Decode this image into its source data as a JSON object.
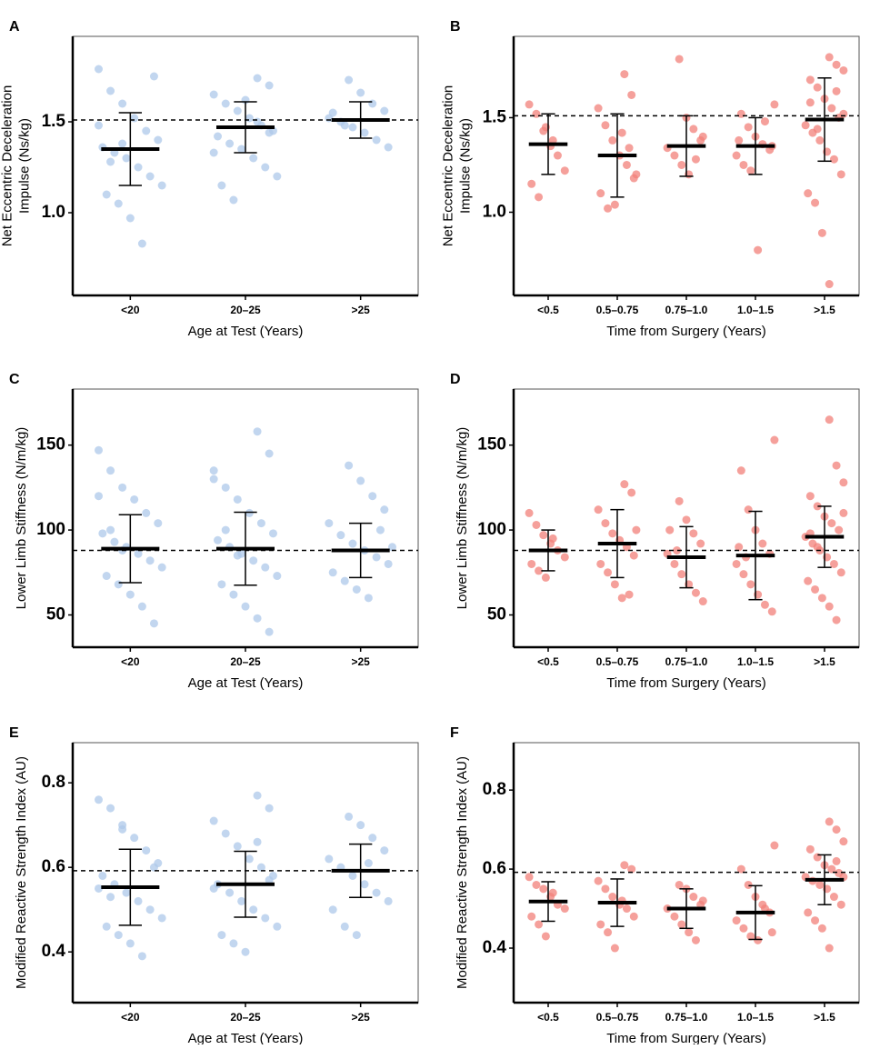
{
  "chart_data": [
    {
      "type": "strip",
      "panel": "A",
      "ylabel": [
        "Net Eccentric Deceleration",
        "Impulse (Ns/kg)"
      ],
      "xlabel": "Age at Test (Years)",
      "color": "#aec8ea",
      "categories": [
        "<20",
        "20–25",
        ">25"
      ],
      "points": [
        [
          1.79,
          1.67,
          1.6,
          1.52,
          1.45,
          1.4,
          1.36,
          1.33,
          1.3,
          1.25,
          1.2,
          1.15,
          1.1,
          1.05,
          0.97,
          0.83,
          1.75,
          1.48,
          1.28,
          1.38
        ],
        [
          1.74,
          1.7,
          1.65,
          1.6,
          1.56,
          1.52,
          1.48,
          1.45,
          1.42,
          1.38,
          1.35,
          1.3,
          1.25,
          1.2,
          1.15,
          1.07,
          1.62,
          1.5,
          1.44,
          1.33
        ],
        [
          1.73,
          1.66,
          1.6,
          1.56,
          1.52,
          1.5,
          1.47,
          1.44,
          1.4,
          1.36,
          1.55,
          1.48
        ]
      ],
      "means": [
        1.35,
        1.47,
        1.51
      ],
      "errors": [
        0.2,
        0.14,
        0.1
      ],
      "hline": 1.51,
      "ylim": [
        0.545,
        1.97
      ],
      "yticks": [
        {
          "value": 1,
          "label": "1.0"
        },
        1.5
      ]
    },
    {
      "type": "strip",
      "panel": "B",
      "ylabel": [
        "Net Eccentric Deceleration",
        "Impulse (Ns/kg)"
      ],
      "xlabel": "Time from Surgery (Years)",
      "color": "#f28079",
      "categories": [
        "<0.5",
        "0.5–0.75",
        "0.75–1.0",
        "1.0–1.5",
        ">1.5"
      ],
      "points": [
        [
          1.57,
          1.52,
          1.43,
          1.35,
          1.3,
          1.22,
          1.15,
          1.08,
          1.45,
          1.38
        ],
        [
          1.73,
          1.62,
          1.55,
          1.46,
          1.38,
          1.3,
          1.25,
          1.18,
          1.1,
          1.02,
          1.04,
          1.42,
          1.34,
          1.2
        ],
        [
          1.81,
          1.5,
          1.44,
          1.38,
          1.34,
          1.3,
          1.25,
          1.2,
          1.28,
          1.4
        ],
        [
          1.57,
          1.52,
          1.45,
          1.4,
          1.36,
          1.33,
          1.3,
          1.25,
          1.22,
          0.8,
          1.48,
          1.35,
          1.38
        ],
        [
          1.82,
          1.78,
          1.75,
          1.7,
          1.66,
          1.6,
          1.55,
          1.5,
          1.46,
          1.42,
          1.38,
          1.32,
          1.28,
          1.2,
          1.1,
          1.05,
          0.89,
          0.62,
          1.64,
          1.52,
          1.58,
          1.44
        ]
      ],
      "means": [
        1.36,
        1.3,
        1.35,
        1.35,
        1.49
      ],
      "errors": [
        0.16,
        0.22,
        0.16,
        0.15,
        0.22
      ],
      "hline": 1.51,
      "ylim": [
        0.56,
        1.93
      ],
      "yticks": [
        {
          "value": 1,
          "label": "1.0"
        },
        1.5
      ]
    },
    {
      "type": "strip",
      "panel": "C",
      "ylabel": [
        "Lower Limb Stiffness (N/m/kg)"
      ],
      "xlabel": "Age at Test (Years)",
      "color": "#aec8ea",
      "categories": [
        "<20",
        "20–25",
        ">25"
      ],
      "points": [
        [
          147,
          135,
          125,
          118,
          110,
          104,
          98,
          93,
          90,
          86,
          82,
          78,
          73,
          68,
          62,
          55,
          45,
          120,
          100,
          88
        ],
        [
          158,
          145,
          135,
          125,
          118,
          110,
          104,
          98,
          94,
          90,
          86,
          82,
          78,
          73,
          68,
          62,
          55,
          48,
          40,
          130,
          100,
          85
        ],
        [
          138,
          129,
          120,
          112,
          104,
          97,
          92,
          88,
          84,
          80,
          75,
          70,
          65,
          60,
          100,
          90
        ]
      ],
      "means": [
        89,
        89,
        88
      ],
      "errors": [
        20,
        21.5,
        16
      ],
      "hline": 88,
      "ylim": [
        31,
        183
      ],
      "yticks": [
        50,
        100,
        150
      ]
    },
    {
      "type": "strip",
      "panel": "D",
      "ylabel": [
        "Lower Limb Stiffness (N/m/kg)"
      ],
      "xlabel": "Time from Surgery (Years)",
      "color": "#f28079",
      "categories": [
        "<0.5",
        "0.5–0.75",
        "0.75–1.0",
        "1.0–1.5",
        ">1.5"
      ],
      "points": [
        [
          110,
          103,
          97,
          92,
          88,
          84,
          80,
          76,
          72,
          95
        ],
        [
          127,
          122,
          112,
          104,
          98,
          94,
          90,
          85,
          80,
          75,
          68,
          60,
          62,
          100
        ],
        [
          117,
          106,
          98,
          92,
          86,
          80,
          74,
          68,
          63,
          58,
          100,
          88
        ],
        [
          153,
          135,
          112,
          100,
          92,
          86,
          80,
          74,
          68,
          62,
          56,
          52,
          90,
          84
        ],
        [
          165,
          138,
          128,
          120,
          114,
          108,
          104,
          100,
          96,
          92,
          88,
          84,
          80,
          75,
          70,
          65,
          60,
          55,
          47,
          110,
          98,
          90
        ]
      ],
      "means": [
        88,
        92,
        84,
        85,
        96
      ],
      "errors": [
        12,
        20,
        18,
        26,
        18
      ],
      "hline": 88,
      "ylim": [
        31,
        183
      ],
      "yticks": [
        50,
        100,
        150
      ]
    },
    {
      "type": "strip",
      "panel": "E",
      "ylabel": [
        "Modified Reactive Strength Index (AU)"
      ],
      "xlabel": "Age at Test (Years)",
      "color": "#aec8ea",
      "categories": [
        "<20",
        "20–25",
        ">25"
      ],
      "points": [
        [
          0.76,
          0.74,
          0.7,
          0.67,
          0.64,
          0.61,
          0.58,
          0.56,
          0.54,
          0.52,
          0.5,
          0.48,
          0.46,
          0.44,
          0.42,
          0.39,
          0.6,
          0.55,
          0.53,
          0.69
        ],
        [
          0.77,
          0.74,
          0.71,
          0.68,
          0.65,
          0.62,
          0.6,
          0.58,
          0.56,
          0.54,
          0.52,
          0.5,
          0.48,
          0.46,
          0.44,
          0.42,
          0.4,
          0.66,
          0.57,
          0.55
        ],
        [
          0.72,
          0.7,
          0.67,
          0.64,
          0.62,
          0.6,
          0.58,
          0.56,
          0.54,
          0.52,
          0.5,
          0.46,
          0.44,
          0.61
        ]
      ],
      "means": [
        0.553,
        0.56,
        0.592
      ],
      "errors": [
        0.09,
        0.078,
        0.063
      ],
      "hline": 0.592,
      "ylim": [
        0.28,
        0.895
      ],
      "yticks": [
        0.4,
        0.6,
        0.8
      ]
    },
    {
      "type": "strip",
      "panel": "F",
      "ylabel": [
        "Modified Reactive Strength Index (AU)"
      ],
      "xlabel": "Time from Surgery (Years)",
      "color": "#f28079",
      "categories": [
        "<0.5",
        "0.5–0.75",
        "0.75–1.0",
        "1.0–1.5",
        ">1.5"
      ],
      "points": [
        [
          0.58,
          0.56,
          0.55,
          0.53,
          0.51,
          0.5,
          0.48,
          0.46,
          0.43,
          0.54
        ],
        [
          0.61,
          0.6,
          0.57,
          0.55,
          0.53,
          0.51,
          0.5,
          0.48,
          0.46,
          0.44,
          0.4,
          0.52
        ],
        [
          0.56,
          0.55,
          0.53,
          0.51,
          0.5,
          0.48,
          0.46,
          0.44,
          0.42,
          0.52
        ],
        [
          0.66,
          0.6,
          0.56,
          0.53,
          0.51,
          0.49,
          0.47,
          0.45,
          0.43,
          0.42,
          0.5,
          0.44
        ],
        [
          0.72,
          0.7,
          0.67,
          0.65,
          0.63,
          0.61,
          0.6,
          0.59,
          0.58,
          0.57,
          0.56,
          0.55,
          0.53,
          0.51,
          0.49,
          0.47,
          0.45,
          0.4,
          0.62,
          0.58
        ]
      ],
      "means": [
        0.518,
        0.515,
        0.5,
        0.49,
        0.573
      ],
      "errors": [
        0.05,
        0.06,
        0.05,
        0.068,
        0.063
      ],
      "hline": 0.592,
      "ylim": [
        0.262,
        0.92
      ],
      "yticks": [
        0.4,
        0.6,
        0.8
      ]
    }
  ]
}
